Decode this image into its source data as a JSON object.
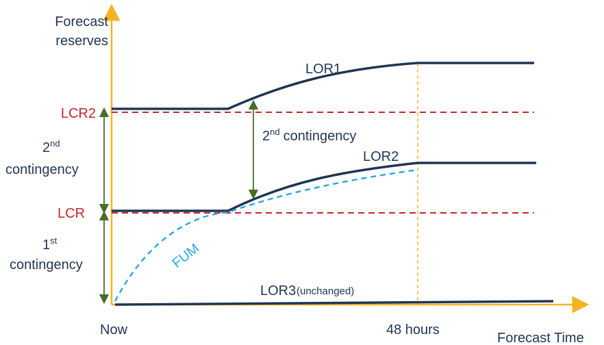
{
  "axes": {
    "y_label": [
      "Forecast",
      "reserves"
    ],
    "x_start": "Now",
    "x_mark": "48 hours",
    "x_label": "Forecast Time"
  },
  "levels": {
    "lcr2": "LCR2",
    "lcr": "LCR"
  },
  "ranges": {
    "second": {
      "number": "2",
      "suffix": "nd",
      "text": "contingency"
    },
    "first": {
      "number": "1",
      "suffix": "st",
      "text": "contingency"
    },
    "middle": {
      "number": "2",
      "suffix": "nd",
      "text": "contingency"
    }
  },
  "curves": {
    "lor1": "LOR1",
    "lor2": "LOR2",
    "fum": "FUM",
    "lor3": "LOR3",
    "lor3_note": "(unchanged)"
  }
}
